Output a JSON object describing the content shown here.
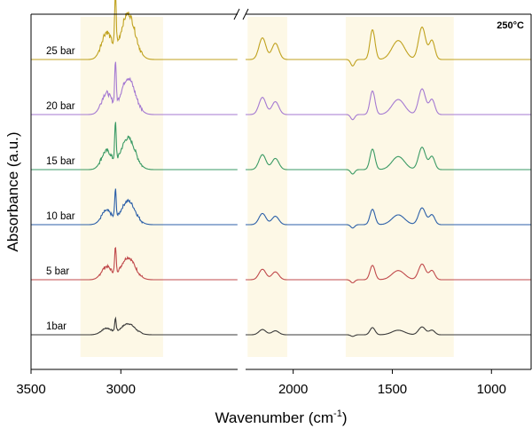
{
  "chart_data": {
    "type": "line",
    "title": "",
    "annotation": "250°C",
    "xlabel": "Wavenumber (cm",
    "xlabel_sup": "-1",
    "xlabel_end": ")",
    "ylabel": "Absorbance (a.u.)",
    "x_axis": {
      "reversed": true,
      "broken": true,
      "segments": [
        {
          "xlim": [
            3500,
            2350
          ]
        },
        {
          "xlim": [
            2240,
            800
          ]
        }
      ],
      "ticks": [
        3500,
        3000,
        2000,
        1500,
        1000
      ]
    },
    "y_ticks": false,
    "grid": false,
    "highlight_bands": [
      {
        "from": 3225,
        "to": 2765
      },
      {
        "from": 2230,
        "to": 2030
      },
      {
        "from": 1735,
        "to": 1190
      }
    ],
    "band_color": "#fdf8e6",
    "series": [
      {
        "name": "1bar",
        "color": "#3a3a3a",
        "offset": 0,
        "scale": 0.35
      },
      {
        "name": "5 bar",
        "color": "#c0494b",
        "offset": 1,
        "scale": 0.7
      },
      {
        "name": "10 bar",
        "color": "#2b5fa8",
        "offset": 2,
        "scale": 0.75
      },
      {
        "name": "15 bar",
        "color": "#3a9a64",
        "offset": 3,
        "scale": 1.0
      },
      {
        "name": "20 bar",
        "color": "#a57ad2",
        "offset": 4,
        "scale": 1.15
      },
      {
        "name": "25 bar",
        "color": "#c0a21f",
        "offset": 5,
        "scale": 1.45
      }
    ],
    "peaks": [
      {
        "center": 3030,
        "height": 1.0,
        "width": 6
      },
      {
        "center": 2960,
        "height": 0.85,
        "width": 55
      },
      {
        "center": 3080,
        "height": 0.5,
        "width": 40
      },
      {
        "center": 2155,
        "height": 0.4,
        "width": 25
      },
      {
        "center": 2090,
        "height": 0.3,
        "width": 25
      },
      {
        "center": 1600,
        "height": 0.55,
        "width": 18
      },
      {
        "center": 1470,
        "height": 0.35,
        "width": 45
      },
      {
        "center": 1350,
        "height": 0.6,
        "width": 25
      },
      {
        "center": 1300,
        "height": 0.35,
        "width": 20
      }
    ]
  }
}
